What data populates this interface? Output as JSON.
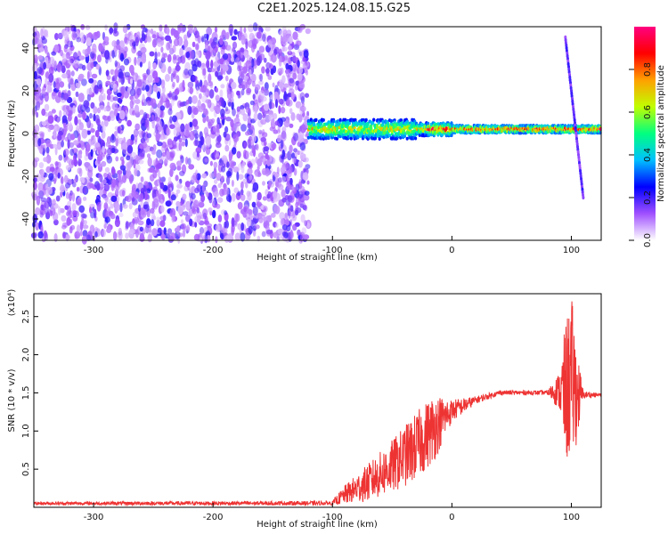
{
  "title": "C2E1.2025.124.08.15.G25",
  "chart_data": [
    {
      "type": "heatmap",
      "name": "spectrogram",
      "xlabel": "Height of straight line (km)",
      "ylabel": "Frequency (Hz)",
      "xlim": [
        -350,
        125
      ],
      "ylim": [
        -50,
        50
      ],
      "xticks": [
        -300,
        -200,
        -100,
        0,
        100
      ],
      "yticks": [
        -40,
        -20,
        0,
        20,
        40
      ],
      "colorbar": {
        "label": "Normalized spectral amplitude",
        "range": [
          0,
          1
        ],
        "ticks": [
          "0.0",
          "0.2",
          "0.4",
          "0.6",
          "0.8"
        ],
        "tick_values": [
          0.0,
          0.2,
          0.4,
          0.6,
          0.8
        ],
        "colors": [
          "#ffffff",
          "#a050ff",
          "#0000ff",
          "#00c0ff",
          "#00ff80",
          "#c0ff00",
          "#ffa000",
          "#ff0000",
          "#ff0080"
        ]
      },
      "features": {
        "noise_region_x": [
          -350,
          -120
        ],
        "tone_frequency_hz": 2,
        "tone_x": [
          -120,
          125
        ],
        "drift_branch_x": [
          95,
          110
        ],
        "drift_branch_freq": [
          45,
          -30
        ]
      }
    },
    {
      "type": "line",
      "name": "snr",
      "xlabel": "Height of straight line (km)",
      "ylabel": "SNR (10 * v/v)",
      "yexponent": "(x10⁴)",
      "xlim": [
        -350,
        125
      ],
      "ylim": [
        0,
        2.8
      ],
      "xticks": [
        -300,
        -200,
        -100,
        0,
        100
      ],
      "yticks": [
        0.5,
        1.0,
        1.5,
        2.0,
        2.5
      ],
      "ytick_labels": [
        "0.5",
        "1.0",
        "1.5",
        "2.0",
        "2.5"
      ],
      "color": "#ee3333",
      "envelope": {
        "x": [
          -350,
          -100,
          -90,
          -70,
          -50,
          -30,
          -15,
          0,
          20,
          40,
          60,
          80,
          90,
          95,
          100,
          105,
          110,
          125
        ],
        "y": [
          0.05,
          0.05,
          0.15,
          0.3,
          0.5,
          0.75,
          1.0,
          1.25,
          1.4,
          1.5,
          1.5,
          1.5,
          1.5,
          1.4,
          1.6,
          1.4,
          1.47,
          1.47
        ],
        "noise": [
          0.02,
          0.03,
          0.12,
          0.25,
          0.35,
          0.45,
          0.45,
          0.15,
          0.05,
          0.03,
          0.03,
          0.03,
          0.25,
          0.9,
          1.1,
          0.6,
          0.05,
          0.02
        ]
      }
    }
  ]
}
